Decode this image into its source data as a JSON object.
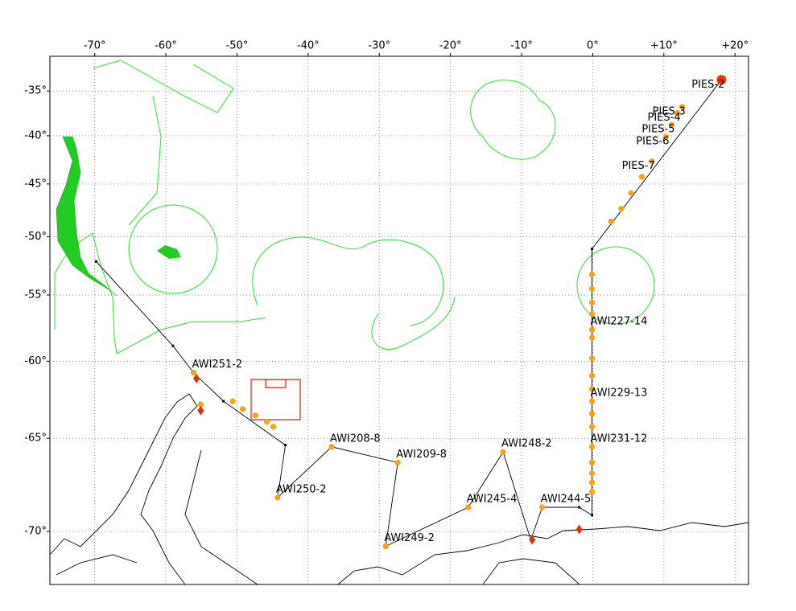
{
  "chart_data": {
    "type": "map",
    "projection": "mercator",
    "xlim": [
      -76.3,
      21.9
    ],
    "ylim": [
      -30.9,
      -72.4
    ],
    "grid": true,
    "xticks": [
      {
        "value": -70,
        "label": "-70°"
      },
      {
        "value": -60,
        "label": "-60°"
      },
      {
        "value": -50,
        "label": "-50°"
      },
      {
        "value": -40,
        "label": "-40°"
      },
      {
        "value": -30,
        "label": "-30°"
      },
      {
        "value": -20,
        "label": "-20°"
      },
      {
        "value": -10,
        "label": "-10°"
      },
      {
        "value": 0,
        "label": "0°"
      },
      {
        "value": 10,
        "label": "+10°"
      },
      {
        "value": 20,
        "label": "+20°"
      }
    ],
    "yticks": [
      {
        "value": -35,
        "label": "-35°"
      },
      {
        "value": -40,
        "label": "-40°"
      },
      {
        "value": -45,
        "label": "-45°"
      },
      {
        "value": -50,
        "label": "-50°"
      },
      {
        "value": -55,
        "label": "-55°"
      },
      {
        "value": -60,
        "label": "-60°"
      },
      {
        "value": -65,
        "label": "-65°"
      },
      {
        "value": -70,
        "label": "-70°"
      }
    ],
    "track": {
      "color": "#000000",
      "lon": [
        -69.8,
        -59.0,
        -56.1,
        -51.9,
        -43.2,
        -44.3,
        -36.7,
        -27.4,
        -29.1,
        -17.5,
        -12.6,
        -8.7,
        -7.1,
        -1.9,
        -0.1,
        -0.1,
        18.1
      ],
      "lat": [
        -52.2,
        -58.9,
        -60.8,
        -62.7,
        -65.4,
        -68.3,
        -65.5,
        -66.4,
        -70.7,
        -68.8,
        -65.8,
        -70.4,
        -68.8,
        -68.8,
        -69.2,
        -51.1,
        -33.7
      ]
    },
    "stations": {
      "color": "#f5a21c",
      "names": [
        "PIES-2",
        "PIES-3",
        "PIES-4",
        "PIES-5",
        "PIES-6",
        "PIES-7",
        "AWI227-14",
        "AWI229-13",
        "AWI231-12",
        "AWI244-5",
        "AWI248-2",
        "AWI245-4",
        "AWI249-2",
        "AWI209-8",
        "AWI208-8",
        "AWI250-2",
        "AWI251-2"
      ],
      "lon": [
        18.1,
        12.6,
        11.9,
        11.1,
        10.3,
        8.3,
        -0.1,
        -0.1,
        -0.1,
        -7.1,
        -12.6,
        -17.5,
        -29.1,
        -27.4,
        -36.7,
        -44.3,
        -56.1
      ],
      "lat": [
        -33.7,
        -36.8,
        -37.5,
        -38.8,
        -40.1,
        -42.7,
        -57.7,
        -62.7,
        -65.5,
        -68.8,
        -65.8,
        -68.8,
        -70.7,
        -66.4,
        -65.5,
        -68.3,
        -60.8
      ]
    },
    "other_stations": {
      "color": "#f5a21c",
      "lon": [
        -0.1,
        -0.1,
        -0.1,
        -0.1,
        -0.1,
        -0.1,
        -0.1,
        -0.1,
        -0.1,
        -0.1,
        -0.1,
        -0.1,
        -0.1,
        -0.1,
        2.6,
        4.0,
        5.4,
        6.9,
        -55.1,
        -50.6,
        -49.2,
        -47.4,
        -45.8,
        -44.9
      ],
      "lat": [
        -53.3,
        -54.5,
        -55.6,
        -56.5,
        -58.3,
        -59.8,
        -61.0,
        -61.9,
        -63.5,
        -64.3,
        -66.4,
        -67.0,
        -67.5,
        -68.0,
        -48.6,
        -47.4,
        -45.9,
        -44.3,
        -62.9,
        -62.7,
        -63.2,
        -63.6,
        -64.0,
        -64.3
      ]
    },
    "moorings": {
      "color": "#dd3311",
      "lon": [
        -55.7,
        -55.1,
        -8.5,
        -1.9
      ],
      "lat": [
        -61.2,
        -63.3,
        -70.4,
        -69.9
      ]
    }
  }
}
